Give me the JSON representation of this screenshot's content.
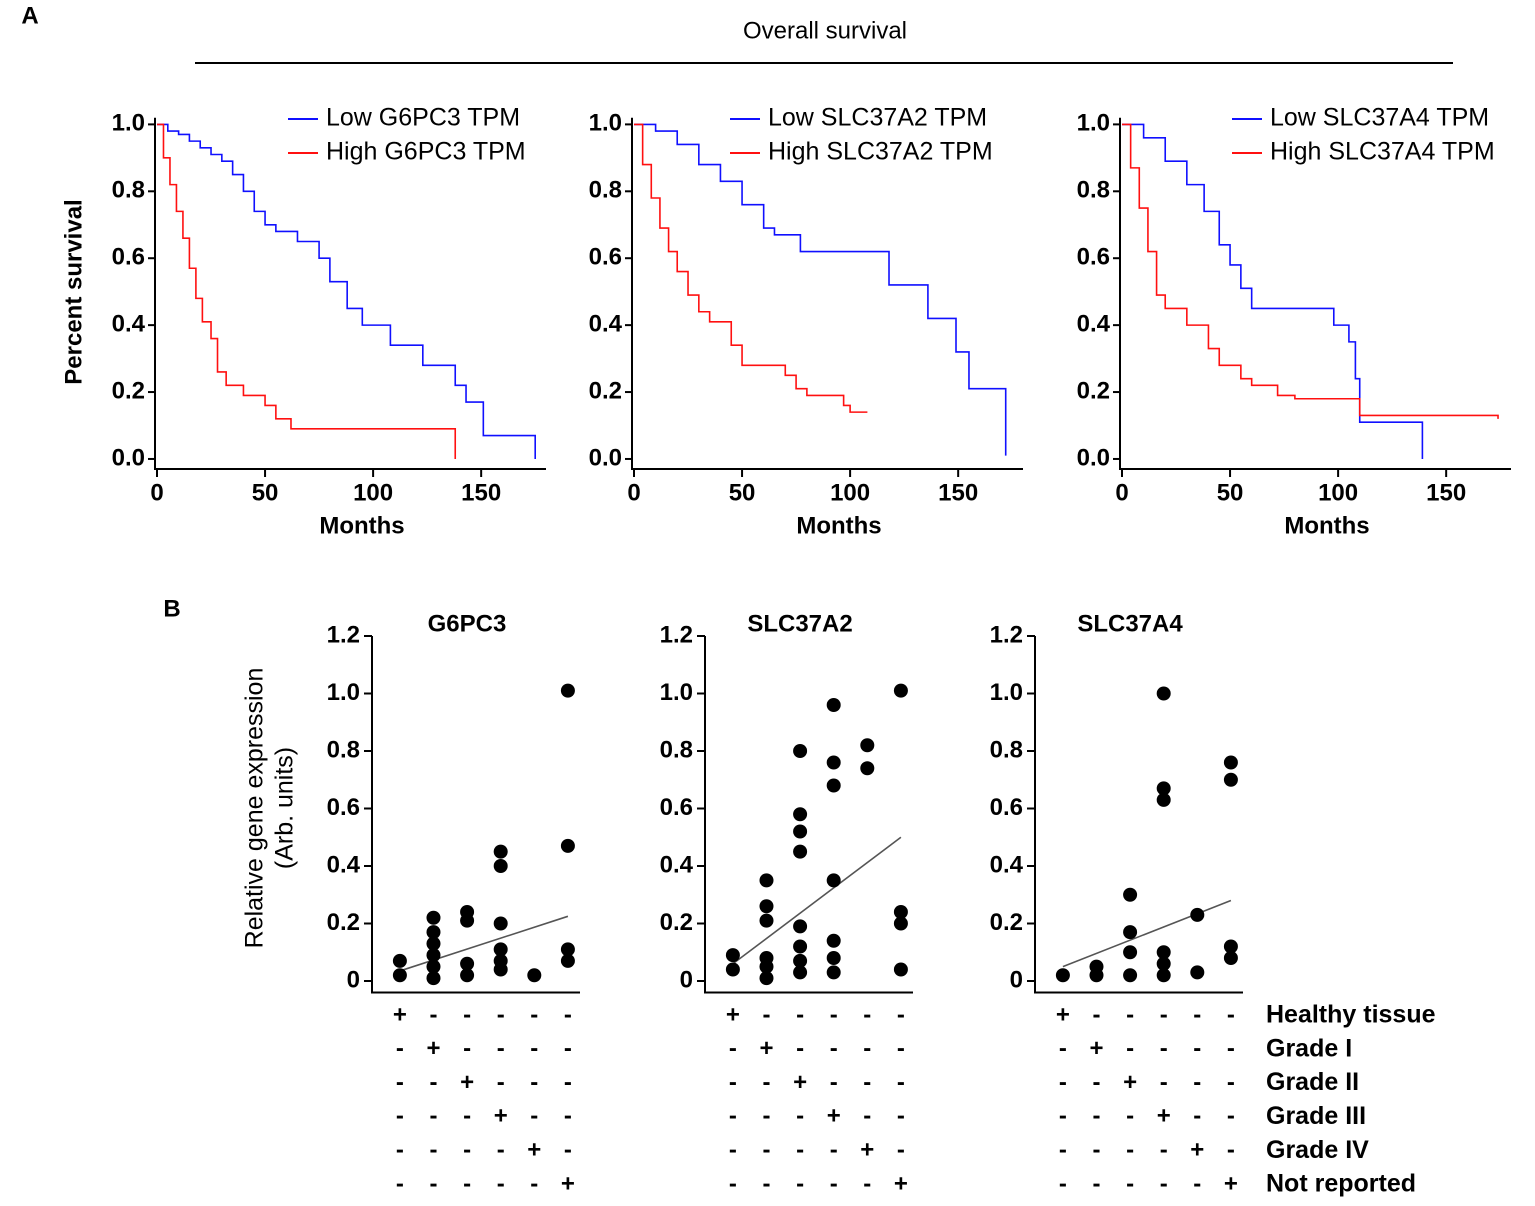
{
  "panel_labels": [
    "A",
    "B"
  ],
  "section_title": "Overall survival",
  "design_matrix": {
    "row_labels": [
      "Healthy tissue",
      "Grade I",
      "Grade II",
      "Grade III",
      "Grade IV",
      "Not reported"
    ],
    "cells": [
      [
        "+",
        "-",
        "-",
        "-",
        "-",
        "-"
      ],
      [
        "-",
        "+",
        "-",
        "-",
        "-",
        "-"
      ],
      [
        "-",
        "-",
        "+",
        "-",
        "-",
        "-"
      ],
      [
        "-",
        "-",
        "-",
        "+",
        "-",
        "-"
      ],
      [
        "-",
        "-",
        "-",
        "-",
        "+",
        "-"
      ],
      [
        "-",
        "-",
        "-",
        "-",
        "-",
        "+"
      ]
    ]
  },
  "chart_data": [
    {
      "type": "survival",
      "y_label": "Percent survival",
      "x_label": "Months",
      "xlim": [
        0,
        180
      ],
      "xticks": [
        0,
        50,
        100,
        150
      ],
      "ylim": [
        -0.03,
        1.02
      ],
      "yticks": [
        {
          "value": 0,
          "label": "0.0"
        },
        0.2,
        0.4,
        0.6,
        0.8,
        {
          "value": 1,
          "label": "1.0"
        }
      ],
      "series": [
        {
          "name": "Low G6PC3 TPM",
          "color": "#1010ff",
          "x": [
            0,
            5,
            10,
            15,
            20,
            25,
            30,
            35,
            40,
            45,
            50,
            55,
            65,
            75,
            80,
            88,
            95,
            108,
            123,
            138,
            143,
            151,
            175
          ],
          "values": [
            1,
            0.98,
            0.97,
            0.95,
            0.93,
            0.91,
            0.89,
            0.85,
            0.8,
            0.74,
            0.7,
            0.68,
            0.65,
            0.6,
            0.53,
            0.45,
            0.4,
            0.34,
            0.28,
            0.22,
            0.17,
            0.07,
            0
          ]
        },
        {
          "name": "High G6PC3 TPM",
          "color": "#ff1010",
          "x": [
            0,
            3,
            6,
            9,
            12,
            15,
            18,
            21,
            25,
            28,
            32,
            40,
            50,
            55,
            62,
            138
          ],
          "values": [
            1,
            0.9,
            0.82,
            0.74,
            0.66,
            0.57,
            0.48,
            0.41,
            0.36,
            0.26,
            0.22,
            0.19,
            0.16,
            0.12,
            0.09,
            0
          ]
        }
      ]
    },
    {
      "type": "survival",
      "x_label": "Months",
      "xlim": [
        0,
        180
      ],
      "xticks": [
        0,
        50,
        100,
        150
      ],
      "ylim": [
        -0.03,
        1.02
      ],
      "yticks": [
        {
          "value": 0,
          "label": "0.0"
        },
        0.2,
        0.4,
        0.6,
        0.8,
        {
          "value": 1,
          "label": "1.0"
        }
      ],
      "series": [
        {
          "name": "Low SLC37A2 TPM",
          "color": "#1010ff",
          "x": [
            0,
            10,
            20,
            30,
            40,
            50,
            60,
            65,
            77,
            118,
            136,
            149,
            155,
            172
          ],
          "values": [
            1,
            0.98,
            0.94,
            0.88,
            0.83,
            0.76,
            0.69,
            0.67,
            0.62,
            0.52,
            0.42,
            0.32,
            0.21,
            0.01
          ]
        },
        {
          "name": "High SLC37A2 TPM",
          "color": "#ff1010",
          "x": [
            0,
            4,
            8,
            12,
            16,
            20,
            25,
            30,
            35,
            45,
            50,
            70,
            75,
            80,
            97,
            100,
            108
          ],
          "values": [
            1,
            0.88,
            0.78,
            0.69,
            0.62,
            0.56,
            0.49,
            0.44,
            0.41,
            0.34,
            0.28,
            0.25,
            0.21,
            0.19,
            0.16,
            0.14,
            0.14
          ]
        }
      ]
    },
    {
      "type": "survival",
      "x_label": "Months",
      "xlim": [
        0,
        180
      ],
      "xticks": [
        0,
        50,
        100,
        150
      ],
      "ylim": [
        -0.03,
        1.02
      ],
      "yticks": [
        {
          "value": 0,
          "label": "0.0"
        },
        0.2,
        0.4,
        0.6,
        0.8,
        {
          "value": 1,
          "label": "1.0"
        }
      ],
      "series": [
        {
          "name": "Low SLC37A4 TPM",
          "color": "#1010ff",
          "x": [
            0,
            10,
            20,
            30,
            38,
            45,
            50,
            55,
            60,
            80,
            98,
            105,
            108,
            110,
            139
          ],
          "values": [
            1,
            0.96,
            0.89,
            0.82,
            0.74,
            0.64,
            0.58,
            0.51,
            0.45,
            0.45,
            0.4,
            0.35,
            0.24,
            0.11,
            0
          ]
        },
        {
          "name": "High SLC37A4 TPM",
          "color": "#ff1010",
          "x": [
            0,
            4,
            8,
            12,
            16,
            20,
            30,
            40,
            45,
            55,
            60,
            72,
            80,
            110,
            174
          ],
          "values": [
            1,
            0.87,
            0.75,
            0.62,
            0.49,
            0.45,
            0.4,
            0.33,
            0.28,
            0.24,
            0.22,
            0.19,
            0.18,
            0.13,
            0.12
          ]
        }
      ]
    },
    {
      "type": "scatter",
      "title": "G6PC3",
      "y_label": [
        "Relative gene expression",
        "(Arb. units)"
      ],
      "xlim": [
        0.17,
        6.36
      ],
      "ylim": [
        -0.04,
        1.2
      ],
      "yticks": [
        0,
        0.2,
        0.4,
        0.6,
        0.8,
        {
          "value": 1,
          "label": "1.0"
        },
        1.2
      ],
      "x": [
        1,
        1,
        2,
        2,
        2,
        2,
        2,
        2,
        3,
        3,
        3,
        3,
        4,
        4,
        4,
        4,
        4,
        4,
        5,
        6,
        6,
        6,
        6
      ],
      "values": [
        0.07,
        0.02,
        0.22,
        0.17,
        0.13,
        0.09,
        0.05,
        0.01,
        0.24,
        0.21,
        0.06,
        0.02,
        0.45,
        0.4,
        0.2,
        0.11,
        0.07,
        0.04,
        0.02,
        1.01,
        0.47,
        0.11,
        0.07
      ],
      "color": "#000000",
      "trendline": {
        "x": [
          1,
          6
        ],
        "values": [
          0.035,
          0.225
        ],
        "color": "#555555"
      }
    },
    {
      "type": "scatter",
      "title": "SLC37A2",
      "xlim": [
        0.17,
        6.36
      ],
      "ylim": [
        -0.04,
        1.2
      ],
      "yticks": [
        0,
        0.2,
        0.4,
        0.6,
        0.8,
        {
          "value": 1,
          "label": "1.0"
        },
        1.2
      ],
      "x": [
        1,
        1,
        2,
        2,
        2,
        2,
        2,
        2,
        3,
        3,
        3,
        3,
        3,
        3,
        3,
        3,
        4,
        4,
        4,
        4,
        4,
        4,
        4,
        5,
        5,
        6,
        6,
        6,
        6
      ],
      "values": [
        0.09,
        0.04,
        0.35,
        0.26,
        0.21,
        0.08,
        0.05,
        0.01,
        0.8,
        0.58,
        0.52,
        0.45,
        0.19,
        0.12,
        0.07,
        0.03,
        0.96,
        0.76,
        0.68,
        0.35,
        0.14,
        0.08,
        0.03,
        0.82,
        0.74,
        1.01,
        0.24,
        0.2,
        0.04
      ],
      "color": "#000000",
      "trendline": {
        "x": [
          1,
          6
        ],
        "values": [
          0.06,
          0.5
        ],
        "color": "#555555"
      }
    },
    {
      "type": "scatter",
      "title": "SLC37A4",
      "xlim": [
        0.17,
        6.36
      ],
      "ylim": [
        -0.04,
        1.2
      ],
      "yticks": [
        0,
        0.2,
        0.4,
        0.6,
        0.8,
        {
          "value": 1,
          "label": "1.0"
        },
        1.2
      ],
      "x": [
        1,
        2,
        2,
        3,
        3,
        3,
        3,
        4,
        4,
        4,
        4,
        4,
        4,
        5,
        5,
        6,
        6,
        6,
        6
      ],
      "values": [
        0.02,
        0.05,
        0.02,
        0.3,
        0.17,
        0.1,
        0.02,
        1,
        0.67,
        0.63,
        0.1,
        0.06,
        0.02,
        0.23,
        0.03,
        0.76,
        0.7,
        0.12,
        0.08
      ],
      "color": "#000000",
      "trendline": {
        "x": [
          1,
          6
        ],
        "values": [
          0.05,
          0.28
        ],
        "color": "#555555"
      }
    }
  ]
}
